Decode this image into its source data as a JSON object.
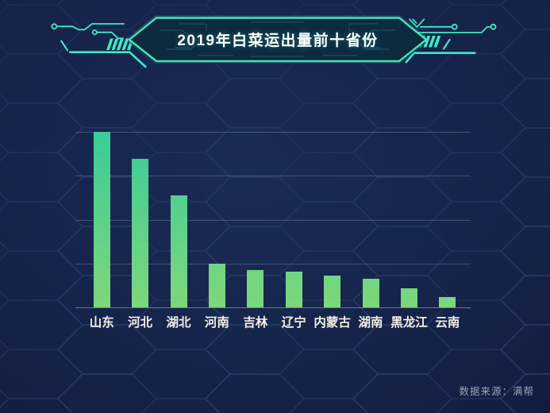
{
  "header": {
    "title": "2019年白菜运出量前十省份"
  },
  "footer": {
    "source_label": "数据来源：满帮"
  },
  "colors": {
    "background_navy": "#16254c",
    "accent_teal": "#3fe9c5",
    "bar_gradient_top": "#3acb98",
    "bar_gradient_bottom": "#7ed77b",
    "gridline": "rgba(178,182,200,0.30)",
    "axis_label_text": "#f3efe5",
    "title_text": "#ffffff",
    "source_text": "#9aa4b8"
  },
  "chart_data": {
    "type": "bar",
    "title": "2019年白菜运出量前十省份",
    "categories": [
      "山东",
      "河北",
      "湖北",
      "河南",
      "吉林",
      "辽宁",
      "内蒙古",
      "湖南",
      "黑龙江",
      "云南"
    ],
    "values": [
      100,
      84.7,
      63.9,
      24.9,
      21.5,
      20.3,
      18.2,
      16.2,
      11.0,
      6.0
    ],
    "value_scale": "percent of tallest bar (y-axis shows no numeric labels)",
    "xlabel": "",
    "ylabel": "",
    "ylim": [
      0,
      100
    ],
    "gridline_step": 25,
    "grid": "horizontal lines only, 4 intervals",
    "legend": "none",
    "source": "数据来源：满帮"
  }
}
